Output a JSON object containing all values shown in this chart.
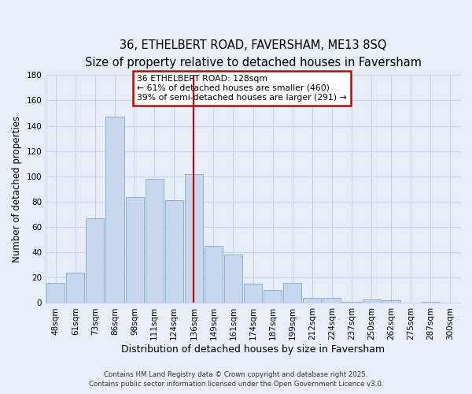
{
  "title": "36, ETHELBERT ROAD, FAVERSHAM, ME13 8SQ",
  "subtitle": "Size of property relative to detached houses in Faversham",
  "xlabel": "Distribution of detached houses by size in Faversham",
  "ylabel": "Number of detached properties",
  "bar_labels": [
    "48sqm",
    "61sqm",
    "73sqm",
    "86sqm",
    "98sqm",
    "111sqm",
    "124sqm",
    "136sqm",
    "149sqm",
    "161sqm",
    "174sqm",
    "187sqm",
    "199sqm",
    "212sqm",
    "224sqm",
    "237sqm",
    "250sqm",
    "262sqm",
    "275sqm",
    "287sqm",
    "300sqm"
  ],
  "bar_values": [
    16,
    24,
    67,
    147,
    84,
    98,
    81,
    102,
    45,
    38,
    15,
    10,
    16,
    4,
    4,
    1,
    3,
    2,
    0,
    1,
    0
  ],
  "bar_color": "#c5d8ed",
  "bar_edgecolor": "#8ab0d0",
  "ylim": [
    0,
    180
  ],
  "yticks": [
    0,
    20,
    40,
    60,
    80,
    100,
    120,
    140,
    160,
    180
  ],
  "vline_x": 7,
  "vline_color": "#cc0000",
  "annotation_title": "36 ETHELBERT ROAD: 128sqm",
  "annotation_line1": "← 61% of detached houses are smaller (460)",
  "annotation_line2": "39% of semi-detached houses are larger (291) →",
  "annotation_box_facecolor": "white",
  "annotation_box_edgecolor": "#cc0000",
  "footer1": "Contains HM Land Registry data © Crown copyright and database right 2025.",
  "footer2": "Contains public sector information licensed under the Open Government Licence v3.0.",
  "background_color": "#e8eef8",
  "grid_color": "#c8d4e8",
  "title_fontsize": 10.5,
  "subtitle_fontsize": 9.5,
  "tick_fontsize": 7.5,
  "ylabel_fontsize": 8.5,
  "xlabel_fontsize": 9
}
